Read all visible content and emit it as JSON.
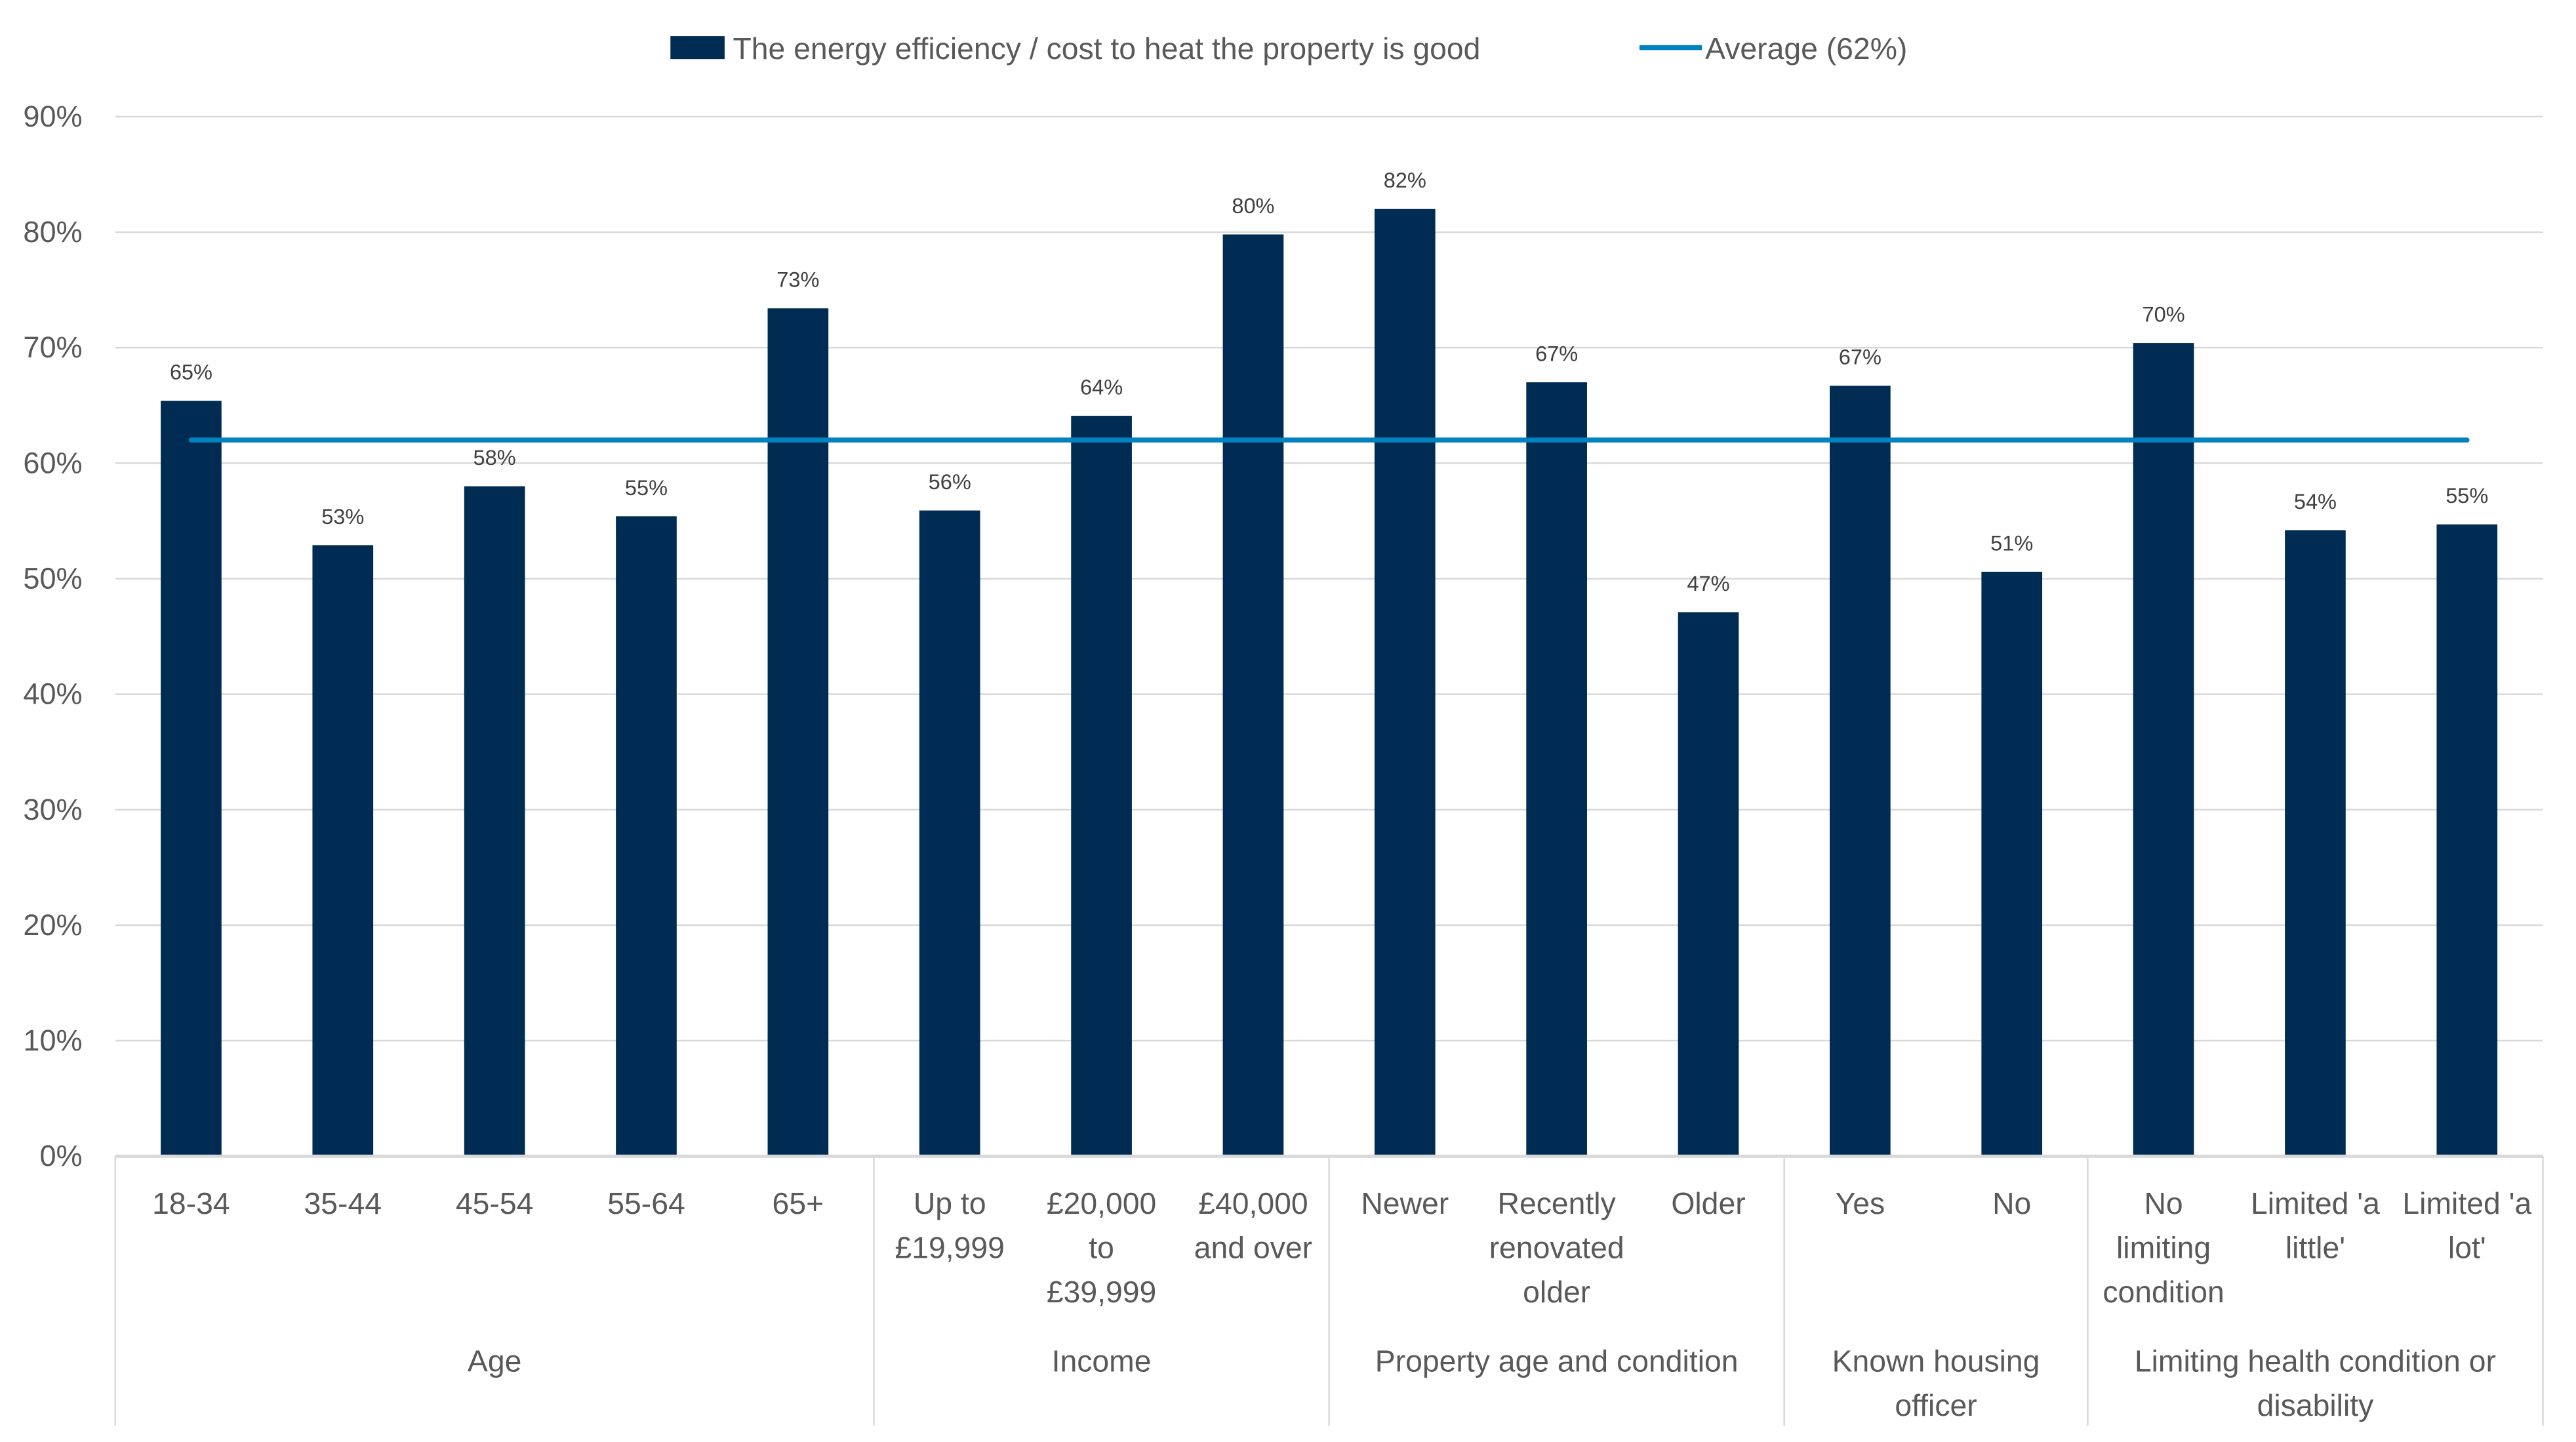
{
  "chart_data": {
    "type": "bar",
    "title": "",
    "xlabel": "",
    "ylabel": "",
    "ylim": [
      0,
      0.9
    ],
    "yticks": [
      "0%",
      "10%",
      "20%",
      "30%",
      "40%",
      "50%",
      "60%",
      "70%",
      "80%",
      "90%"
    ],
    "grid": true,
    "legend_position": "top",
    "colors": {
      "bar": "#002B52",
      "average": "#0082C0",
      "text": "#595959",
      "grid": "#D9D9D9"
    },
    "groups": [
      {
        "label": [
          "Age"
        ],
        "categories": [
          [
            "18-34"
          ],
          [
            "35-44"
          ],
          [
            "45-54"
          ],
          [
            "55-64"
          ],
          [
            "65+"
          ]
        ]
      },
      {
        "label": [
          "Income"
        ],
        "categories": [
          [
            "Up to",
            "£19,999"
          ],
          [
            "£20,000",
            "to",
            "£39,999"
          ],
          [
            "£40,000",
            "and over"
          ]
        ]
      },
      {
        "label": [
          "Property age and condition"
        ],
        "categories": [
          [
            "Newer"
          ],
          [
            "Recently",
            "renovated",
            "older"
          ],
          [
            "Older"
          ]
        ]
      },
      {
        "label": [
          "Known housing",
          "officer"
        ],
        "categories": [
          [
            "Yes"
          ],
          [
            "No"
          ]
        ]
      },
      {
        "label": [
          "Limiting health condition or",
          "disability"
        ],
        "categories": [
          [
            "No",
            "limiting",
            "condition"
          ],
          [
            "Limited 'a",
            "little'"
          ],
          [
            "Limited 'a",
            "lot'"
          ]
        ]
      }
    ],
    "series": [
      {
        "name": "The energy efficiency / cost to heat the property is good",
        "values": [
          0.654,
          0.529,
          0.58,
          0.554,
          0.734,
          0.559,
          0.641,
          0.798,
          0.82,
          0.67,
          0.471,
          0.667,
          0.506,
          0.704,
          0.542,
          0.547
        ],
        "data_labels": [
          "65%",
          "53%",
          "58%",
          "55%",
          "73%",
          "56%",
          "64%",
          "80%",
          "82%",
          "67%",
          "47%",
          "67%",
          "51%",
          "70%",
          "54%",
          "55%"
        ]
      },
      {
        "name": "Average (62%)",
        "type": "line",
        "value": 0.62
      }
    ]
  }
}
